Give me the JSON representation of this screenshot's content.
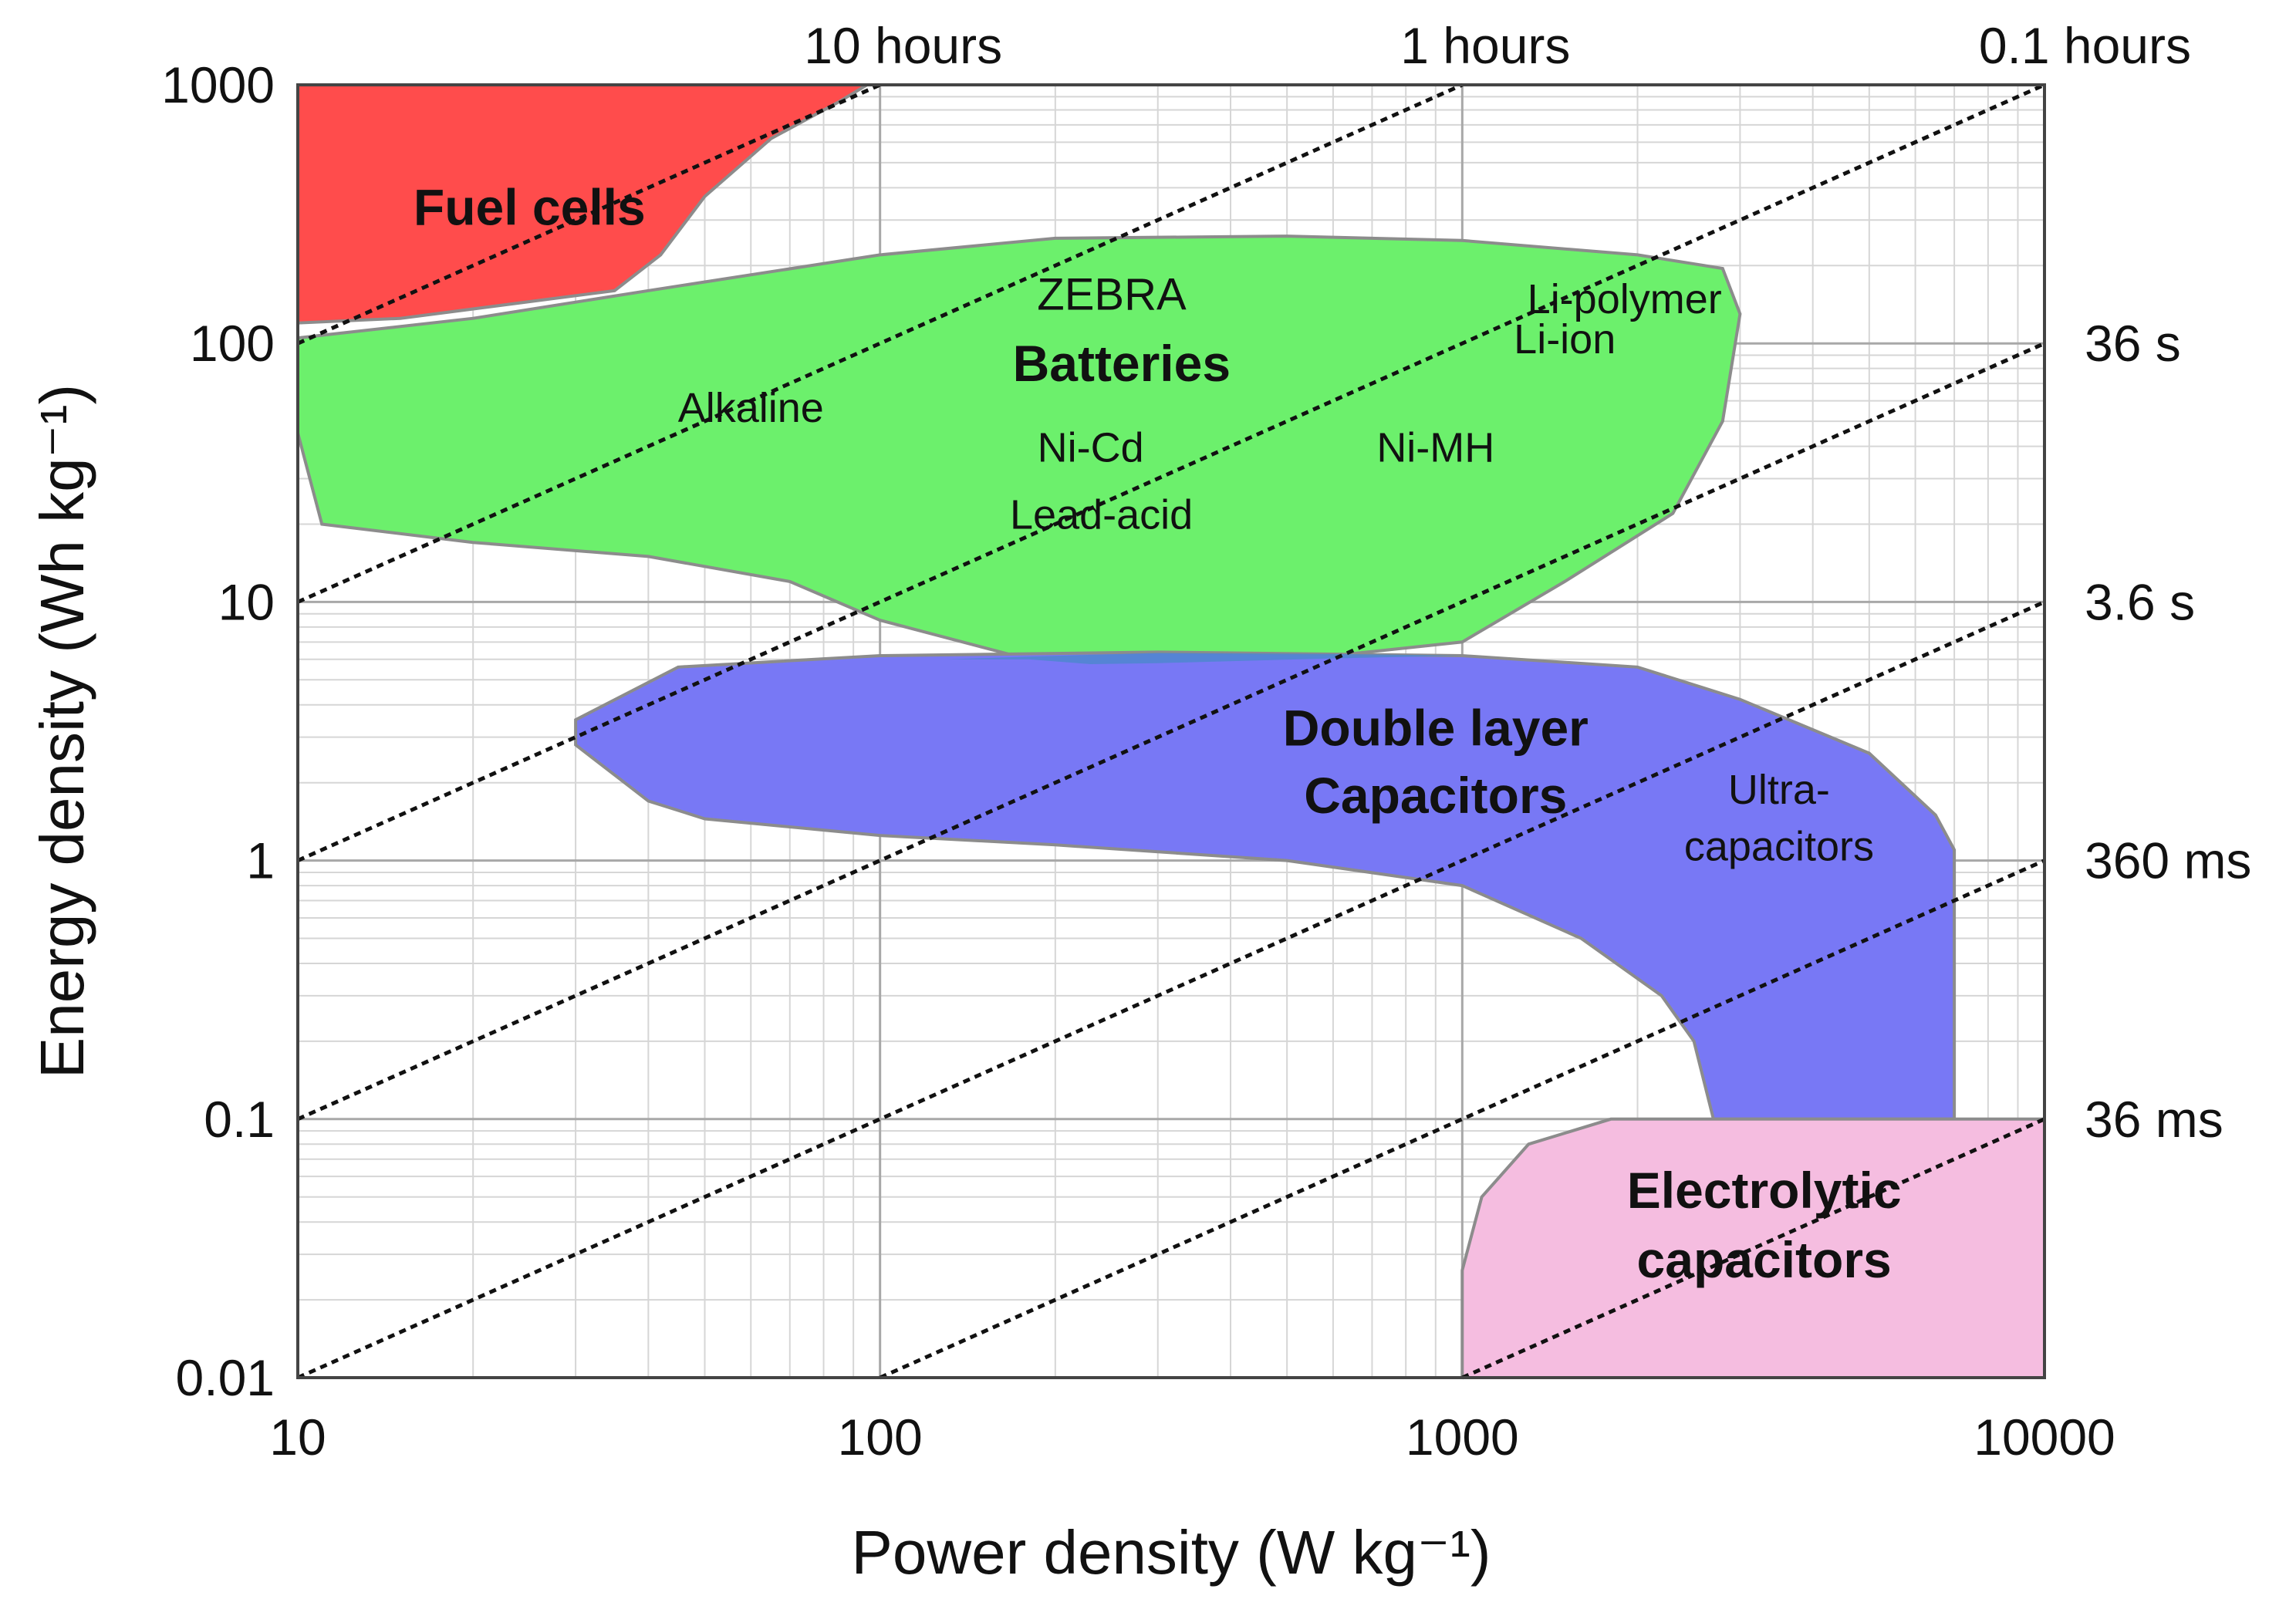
{
  "chart_data": {
    "type": "area",
    "xlabel": "Power density (W kg⁻¹)",
    "ylabel": "Energy density (Wh kg⁻¹)",
    "x_scale": "log",
    "y_scale": "log",
    "xlim": [
      10,
      10000
    ],
    "ylim": [
      0.01,
      1000
    ],
    "grid": true,
    "x_ticks": [
      {
        "value": 10,
        "label": "10"
      },
      {
        "value": 100,
        "label": "100"
      },
      {
        "value": 1000,
        "label": "1000"
      },
      {
        "value": 10000,
        "label": "10000"
      }
    ],
    "y_ticks": [
      {
        "value": 0.01,
        "label": "0.01"
      },
      {
        "value": 0.1,
        "label": "0.1"
      },
      {
        "value": 1,
        "label": "1"
      },
      {
        "value": 10,
        "label": "10"
      },
      {
        "value": 100,
        "label": "100"
      },
      {
        "value": 1000,
        "label": "1000"
      }
    ],
    "time_lines": [
      {
        "hours": 100,
        "label": ""
      },
      {
        "hours": 10,
        "label": "10 hours",
        "label_side": "top",
        "label_x": 100
      },
      {
        "hours": 1,
        "label": "1 hours",
        "label_side": "top",
        "label_x": 1000
      },
      {
        "hours": 0.1,
        "label": "0.1 hours",
        "label_side": "top",
        "label_x": 10000
      },
      {
        "hours": 0.01,
        "label": "36 s",
        "label_side": "right",
        "label_y": 100
      },
      {
        "hours": 0.001,
        "label": "3.6 s",
        "label_side": "right",
        "label_y": 10
      },
      {
        "hours": 0.0001,
        "label": "360 ms",
        "label_side": "right",
        "label_y": 1
      },
      {
        "hours": 1e-05,
        "label": "36 ms",
        "label_side": "right",
        "label_y": 0.1
      }
    ],
    "regions": [
      {
        "name": "Fuel cells",
        "color": "#ff4c4c",
        "outline": [
          [
            10,
            1000
          ],
          [
            95,
            1000
          ],
          [
            85,
            860
          ],
          [
            65,
            620
          ],
          [
            50,
            370
          ],
          [
            42,
            220
          ],
          [
            35,
            160
          ],
          [
            15,
            125
          ],
          [
            10,
            120
          ]
        ]
      },
      {
        "name": "Batteries",
        "color": "#6cf06c",
        "outline": [
          [
            10,
            105
          ],
          [
            20,
            125
          ],
          [
            40,
            160
          ],
          [
            100,
            220
          ],
          [
            200,
            255
          ],
          [
            500,
            260
          ],
          [
            1000,
            250
          ],
          [
            2000,
            220
          ],
          [
            2800,
            195
          ],
          [
            3000,
            130
          ],
          [
            2800,
            50
          ],
          [
            2300,
            22
          ],
          [
            1500,
            12
          ],
          [
            1000,
            7
          ],
          [
            600,
            6.2
          ],
          [
            300,
            5.8
          ],
          [
            180,
            6.0
          ],
          [
            100,
            8.5
          ],
          [
            70,
            12
          ],
          [
            40,
            15
          ],
          [
            20,
            17
          ],
          [
            11,
            20
          ],
          [
            10,
            45
          ]
        ]
      },
      {
        "name": "Double layer Capacitors",
        "color": "#7878f5",
        "outline": [
          [
            30,
            3.5
          ],
          [
            45,
            5.6
          ],
          [
            100,
            6.2
          ],
          [
            300,
            6.4
          ],
          [
            1000,
            6.2
          ],
          [
            2000,
            5.6
          ],
          [
            3000,
            4.2
          ],
          [
            5000,
            2.6
          ],
          [
            6500,
            1.5
          ],
          [
            7000,
            1.1
          ],
          [
            7000,
            0.1
          ],
          [
            2700,
            0.1
          ],
          [
            2500,
            0.2
          ],
          [
            2200,
            0.3
          ],
          [
            1600,
            0.5
          ],
          [
            1000,
            0.8
          ],
          [
            500,
            1.0
          ],
          [
            200,
            1.15
          ],
          [
            100,
            1.25
          ],
          [
            50,
            1.45
          ],
          [
            40,
            1.7
          ],
          [
            30,
            2.8
          ]
        ]
      },
      {
        "name": "Electrolytic capacitors",
        "color": "#f5bde0",
        "outline": [
          [
            1000,
            0.01
          ],
          [
            1000,
            0.026
          ],
          [
            1080,
            0.05
          ],
          [
            1300,
            0.08
          ],
          [
            1800,
            0.1
          ],
          [
            10000,
            0.1
          ],
          [
            10000,
            0.01
          ]
        ]
      }
    ],
    "overlap_color": "#4f86cf",
    "annotations": [
      {
        "text": "Fuel cells",
        "x": 25,
        "y": 330,
        "style": "bold"
      },
      {
        "text": "ZEBRA",
        "x": 250,
        "y": 155,
        "style": "plain"
      },
      {
        "text": "Batteries",
        "x": 260,
        "y": 82,
        "style": "bold"
      },
      {
        "text": "Li-polymer",
        "x": 1900,
        "y": 150,
        "style": "small"
      },
      {
        "text": "Li-ion",
        "x": 1500,
        "y": 105,
        "style": "small"
      },
      {
        "text": "Alkaline",
        "x": 60,
        "y": 57,
        "style": "small"
      },
      {
        "text": "Ni-Cd",
        "x": 230,
        "y": 40,
        "style": "small"
      },
      {
        "text": "Ni-MH",
        "x": 900,
        "y": 40,
        "style": "small"
      },
      {
        "text": "Lead-acid",
        "x": 240,
        "y": 22,
        "style": "small"
      },
      {
        "text": "Double layer",
        "x": 900,
        "y": 3.2,
        "style": "bold"
      },
      {
        "text": "Capacitors",
        "x": 900,
        "y": 1.75,
        "style": "bold"
      },
      {
        "text": "Ultra-",
        "x": 3500,
        "y": 1.9,
        "style": "small"
      },
      {
        "text": "capacitors",
        "x": 3500,
        "y": 1.15,
        "style": "small"
      },
      {
        "text": "Electrolytic",
        "x": 3300,
        "y": 0.052,
        "style": "bold"
      },
      {
        "text": "capacitors",
        "x": 3300,
        "y": 0.028,
        "style": "bold"
      }
    ]
  }
}
